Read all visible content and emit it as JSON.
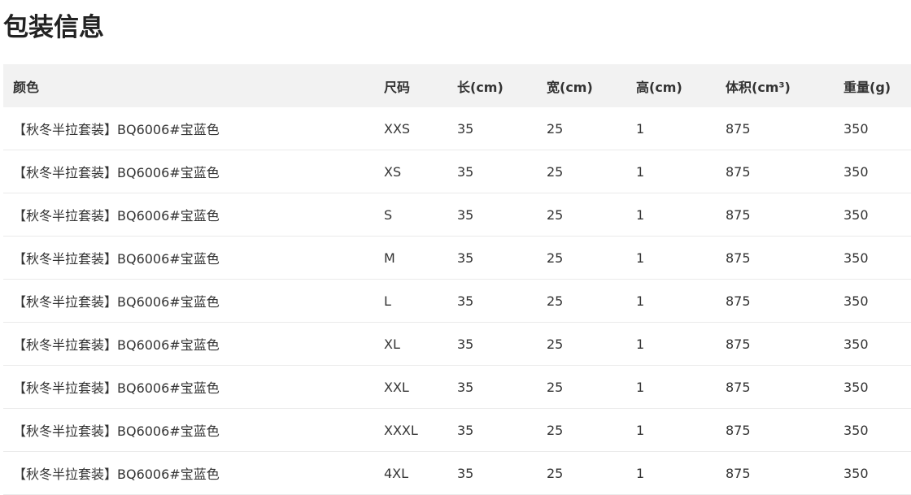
{
  "title": "包装信息",
  "table": {
    "headers": [
      "颜色",
      "尺码",
      "长(cm)",
      "宽(cm)",
      "高(cm)",
      "体积(cm³)",
      "重量(g)"
    ],
    "rows": [
      [
        "【秋冬半拉套装】BQ6006#宝蓝色",
        "XXS",
        "35",
        "25",
        "1",
        "875",
        "350"
      ],
      [
        "【秋冬半拉套装】BQ6006#宝蓝色",
        "XS",
        "35",
        "25",
        "1",
        "875",
        "350"
      ],
      [
        "【秋冬半拉套装】BQ6006#宝蓝色",
        "S",
        "35",
        "25",
        "1",
        "875",
        "350"
      ],
      [
        "【秋冬半拉套装】BQ6006#宝蓝色",
        "M",
        "35",
        "25",
        "1",
        "875",
        "350"
      ],
      [
        "【秋冬半拉套装】BQ6006#宝蓝色",
        "L",
        "35",
        "25",
        "1",
        "875",
        "350"
      ],
      [
        "【秋冬半拉套装】BQ6006#宝蓝色",
        "XL",
        "35",
        "25",
        "1",
        "875",
        "350"
      ],
      [
        "【秋冬半拉套装】BQ6006#宝蓝色",
        "XXL",
        "35",
        "25",
        "1",
        "875",
        "350"
      ],
      [
        "【秋冬半拉套装】BQ6006#宝蓝色",
        "XXXL",
        "35",
        "25",
        "1",
        "875",
        "350"
      ],
      [
        "【秋冬半拉套装】BQ6006#宝蓝色",
        "4XL",
        "35",
        "25",
        "1",
        "875",
        "350"
      ]
    ]
  }
}
